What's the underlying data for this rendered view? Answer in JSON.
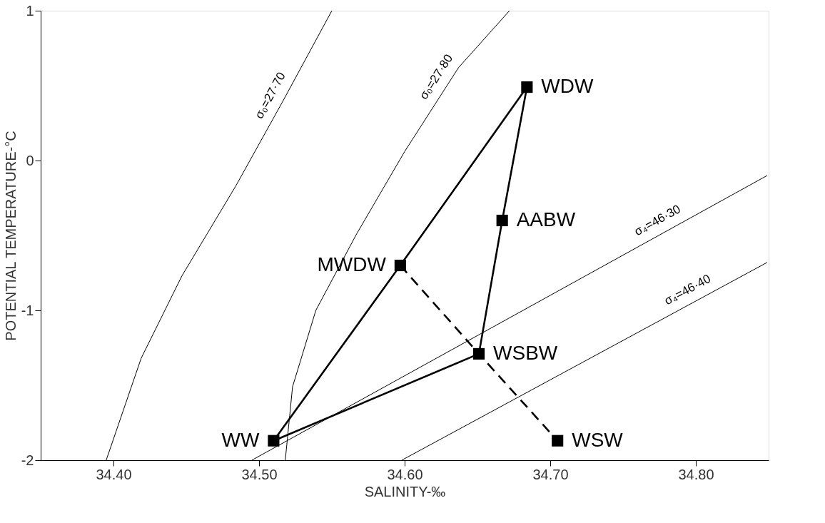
{
  "chart_data": {
    "type": "line",
    "xlabel": "SALINITY-‰",
    "ylabel": "POTENTIAL TEMPERATURE-°C",
    "xlim": [
      34.35,
      34.85
    ],
    "ylim": [
      -2,
      1
    ],
    "xticks": [
      {
        "value": 34.4,
        "label": "34.40"
      },
      {
        "value": 34.5,
        "label": "34.50"
      },
      {
        "value": 34.6,
        "label": "34.60"
      },
      {
        "value": 34.7,
        "label": "34.70"
      },
      {
        "value": 34.8,
        "label": "34.80"
      }
    ],
    "yticks": [
      -2,
      -1,
      0,
      1
    ],
    "grid": false,
    "series": [
      {
        "name": "σ₀=27·70",
        "type": "line",
        "color": "#000000",
        "x": [
          34.395,
          34.419,
          34.447,
          34.484,
          34.516,
          34.55
        ],
        "values": [
          -2.0,
          -1.32,
          -0.77,
          -0.17,
          0.39,
          1.0
        ]
      },
      {
        "name": "σ₀=27·80",
        "type": "line",
        "color": "#000000",
        "x": [
          34.518,
          34.523,
          34.539,
          34.567,
          34.6,
          34.637,
          34.672
        ],
        "values": [
          -2.0,
          -1.51,
          -1.0,
          -0.49,
          0.06,
          0.62,
          1.0
        ]
      },
      {
        "name": "σ₄=46·30",
        "type": "line",
        "color": "#000000",
        "x": [
          34.495,
          34.849
        ],
        "values": [
          -2.0,
          -0.1
        ]
      },
      {
        "name": "σ₄=46·40",
        "type": "line",
        "color": "#000000",
        "x": [
          34.598,
          34.849
        ],
        "values": [
          -2.0,
          -0.68
        ]
      },
      {
        "type": "line",
        "color": "#000000",
        "line_style": "solid",
        "x": [
          34.51,
          34.597,
          34.684
        ],
        "values": [
          -1.87,
          -0.7,
          0.49
        ]
      },
      {
        "type": "line",
        "color": "#000000",
        "line_style": "solid",
        "x": [
          34.684,
          34.667,
          34.651,
          34.51
        ],
        "values": [
          0.49,
          -0.4,
          -1.29,
          -1.87
        ]
      },
      {
        "type": "line",
        "color": "#000000",
        "line_style": "dashed",
        "x": [
          34.597,
          34.651,
          34.705
        ],
        "values": [
          -0.7,
          -1.29,
          -1.87
        ]
      },
      {
        "type": "scatter",
        "marker": "square",
        "color": "#000000",
        "x": [
          34.684,
          34.667,
          34.597,
          34.651,
          34.51,
          34.705
        ],
        "values": [
          0.49,
          -0.4,
          -0.7,
          -1.29,
          -1.87,
          -1.87
        ]
      }
    ],
    "annotations": [
      {
        "text": "WDW",
        "x": 34.684,
        "y": 0.49
      },
      {
        "text": "AABW",
        "x": 34.667,
        "y": -0.4
      },
      {
        "text": "MWDW",
        "x": 34.597,
        "y": -0.7
      },
      {
        "text": "WSBW",
        "x": 34.651,
        "y": -1.29
      },
      {
        "text": "WW",
        "x": 34.51,
        "y": -1.87
      },
      {
        "text": "WSW",
        "x": 34.705,
        "y": -1.87
      }
    ]
  }
}
